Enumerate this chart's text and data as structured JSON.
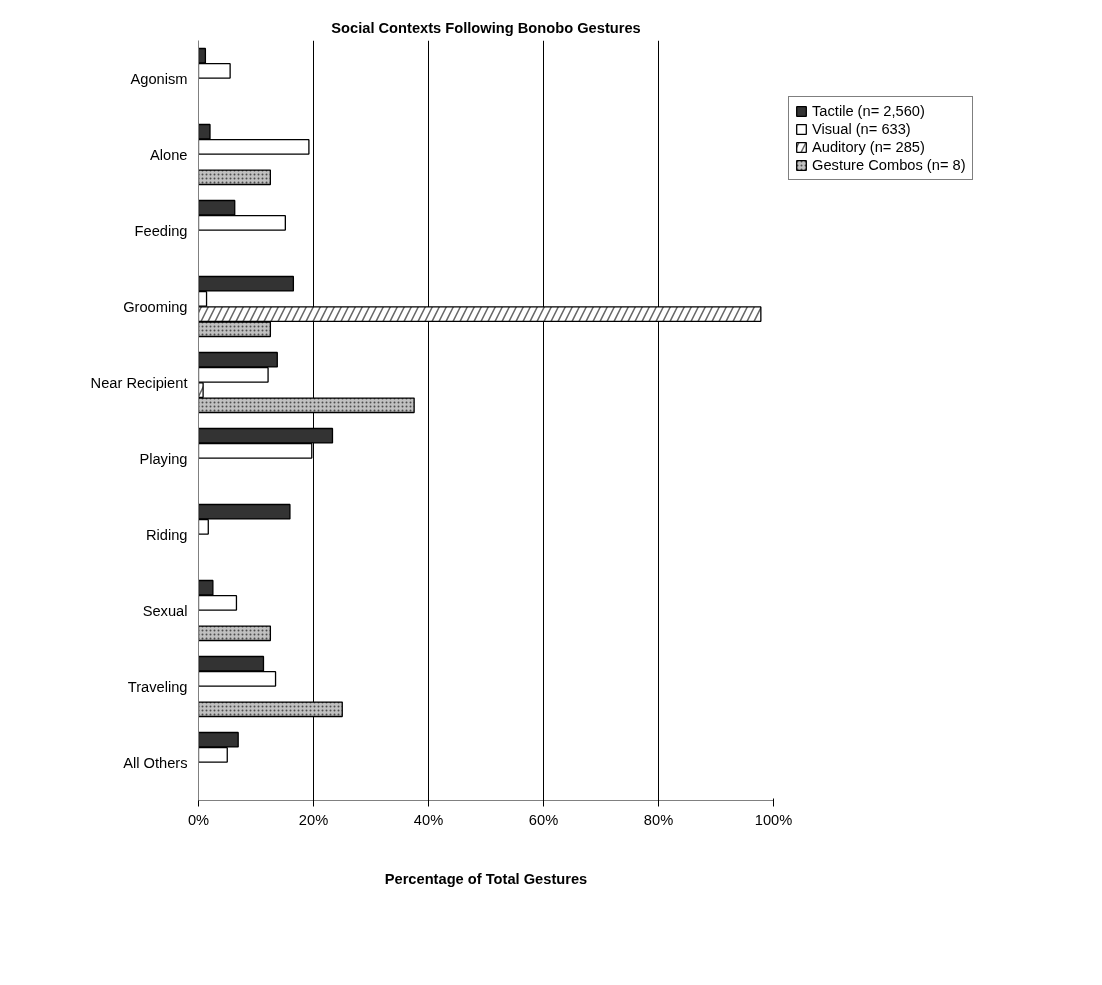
{
  "chart_data": {
    "type": "bar",
    "orientation": "horizontal",
    "title": "Social Contexts Following Bonobo Gestures",
    "xlabel": "Percentage of Total Gestures",
    "categories": [
      "Agonism",
      "Alone",
      "Feeding",
      "Grooming",
      "Near Recipient",
      "Playing",
      "Riding",
      "Sexual",
      "Traveling",
      "All Others"
    ],
    "series": [
      {
        "name": "Tactile (n= 2,560)",
        "color": "#333333",
        "values": [
          1.2,
          2.0,
          6.3,
          16.5,
          13.7,
          23.3,
          15.9,
          2.5,
          11.3,
          6.9
        ]
      },
      {
        "name": "Visual (n= 633)",
        "color": "#ffffff",
        "values": [
          5.5,
          19.2,
          15.1,
          1.4,
          12.1,
          19.7,
          1.7,
          6.6,
          13.4,
          5.0
        ]
      },
      {
        "name": "Auditory (n= 285)",
        "color": "#ffffff",
        "values": [
          null,
          null,
          null,
          97.8,
          0.8,
          null,
          null,
          null,
          null,
          null
        ]
      },
      {
        "name": "Gesture Combos (n= 8)",
        "color": "#c0c0c0",
        "values": [
          null,
          12.5,
          null,
          12.5,
          37.5,
          null,
          null,
          12.5,
          25.0,
          null
        ]
      }
    ],
    "xlim": [
      0,
      100
    ],
    "xticks": [
      {
        "value": 0,
        "label": "0%"
      },
      {
        "value": 20,
        "label": "20%"
      },
      {
        "value": 40,
        "label": "40%"
      },
      {
        "value": 60,
        "label": "60%"
      },
      {
        "value": 80,
        "label": "80%"
      },
      {
        "value": 100,
        "label": "100%"
      }
    ],
    "grid": "x",
    "legend": "top right"
  }
}
